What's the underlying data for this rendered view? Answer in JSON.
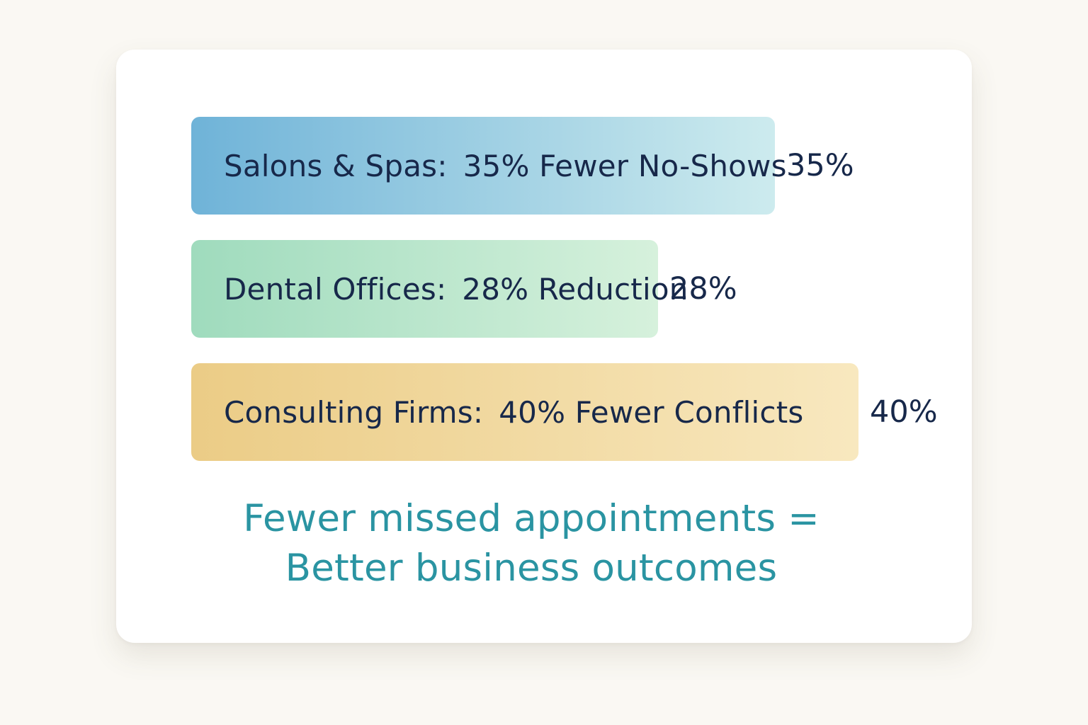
{
  "chart_data": {
    "type": "bar",
    "orientation": "horizontal",
    "categories": [
      "Salons & Spas:",
      "Dental Offices:",
      "Consulting Firms:"
    ],
    "descriptions": [
      "35% Fewer No-Shows",
      "28% Reduction",
      "40% Fewer Conflicts"
    ],
    "values": [
      35,
      28,
      40
    ],
    "value_labels": [
      "35%",
      "28%",
      "40%"
    ],
    "bar_colors": [
      [
        "#6fb3d8",
        "#cdebee"
      ],
      [
        "#9fdbbd",
        "#d6f1dc"
      ],
      [
        "#ebcc86",
        "#f8e8bf"
      ]
    ],
    "xlim": [
      0,
      40
    ],
    "grid": false,
    "legend": "none"
  },
  "caption": {
    "line1": "Fewer missed appointments =",
    "line2": "Better business outcomes"
  }
}
